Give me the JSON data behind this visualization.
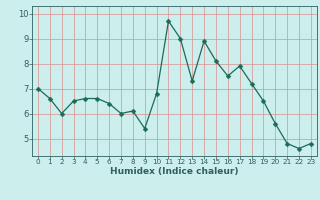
{
  "x": [
    0,
    1,
    2,
    3,
    4,
    5,
    6,
    7,
    8,
    9,
    10,
    11,
    12,
    13,
    14,
    15,
    16,
    17,
    18,
    19,
    20,
    21,
    22,
    23
  ],
  "y": [
    7.0,
    6.6,
    6.0,
    6.5,
    6.6,
    6.6,
    6.4,
    6.0,
    6.1,
    5.4,
    6.8,
    9.7,
    9.0,
    7.3,
    8.9,
    8.1,
    7.5,
    7.9,
    7.2,
    6.5,
    5.6,
    4.8,
    4.6,
    4.8
  ],
  "line_color": "#1a6b5a",
  "marker": "D",
  "marker_size": 2.5,
  "bg_color": "#cceeed",
  "grid_color_v": "#d99090",
  "grid_color_h": "#d99090",
  "axis_color": "#2f5f5f",
  "xlabel": "Humidex (Indice chaleur)",
  "ylim": [
    4.3,
    10.3
  ],
  "xlim": [
    -0.5,
    23.5
  ],
  "yticks": [
    5,
    6,
    7,
    8,
    9,
    10
  ],
  "xticks": [
    0,
    1,
    2,
    3,
    4,
    5,
    6,
    7,
    8,
    9,
    10,
    11,
    12,
    13,
    14,
    15,
    16,
    17,
    18,
    19,
    20,
    21,
    22,
    23
  ],
  "xlabel_fontsize": 6.5,
  "tick_fontsize_x": 5.2,
  "tick_fontsize_y": 6.0
}
